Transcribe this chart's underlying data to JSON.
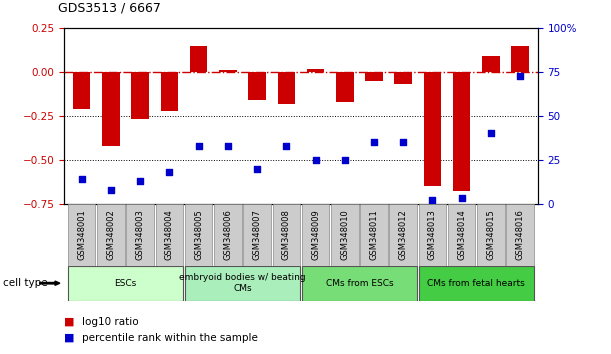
{
  "title": "GDS3513 / 6667",
  "samples": [
    "GSM348001",
    "GSM348002",
    "GSM348003",
    "GSM348004",
    "GSM348005",
    "GSM348006",
    "GSM348007",
    "GSM348008",
    "GSM348009",
    "GSM348010",
    "GSM348011",
    "GSM348012",
    "GSM348013",
    "GSM348014",
    "GSM348015",
    "GSM348016"
  ],
  "log10_ratio": [
    -0.21,
    -0.42,
    -0.27,
    -0.22,
    0.15,
    0.01,
    -0.16,
    -0.18,
    0.015,
    -0.17,
    -0.05,
    -0.07,
    -0.65,
    -0.68,
    0.09,
    0.15
  ],
  "percentile_rank": [
    14,
    8,
    13,
    18,
    33,
    33,
    20,
    33,
    25,
    25,
    35,
    35,
    2,
    3,
    40,
    73
  ],
  "ylim_left": [
    -0.75,
    0.25
  ],
  "ylim_right": [
    0,
    100
  ],
  "yticks_left": [
    -0.75,
    -0.5,
    -0.25,
    0,
    0.25
  ],
  "yticks_right": [
    0,
    25,
    50,
    75,
    100
  ],
  "ytick_labels_right": [
    "0",
    "25",
    "50",
    "75",
    "100%"
  ],
  "bar_color": "#cc0000",
  "dot_color": "#0000cc",
  "group_colors": [
    "#ccffcc",
    "#aaeebb",
    "#77dd77",
    "#44cc44"
  ],
  "group_labels": [
    "ESCs",
    "embryoid bodies w/ beating\nCMs",
    "CMs from ESCs",
    "CMs from fetal hearts"
  ],
  "group_ranges": [
    [
      0,
      3
    ],
    [
      4,
      7
    ],
    [
      8,
      11
    ],
    [
      12,
      15
    ]
  ],
  "cell_type_label": "cell type",
  "legend_labels": [
    "log10 ratio",
    "percentile rank within the sample"
  ],
  "legend_colors": [
    "#cc0000",
    "#0000cc"
  ],
  "bar_width": 0.6,
  "dot_size": 25,
  "tick_color_left": "#cc0000",
  "tick_color_right": "#0000cc"
}
